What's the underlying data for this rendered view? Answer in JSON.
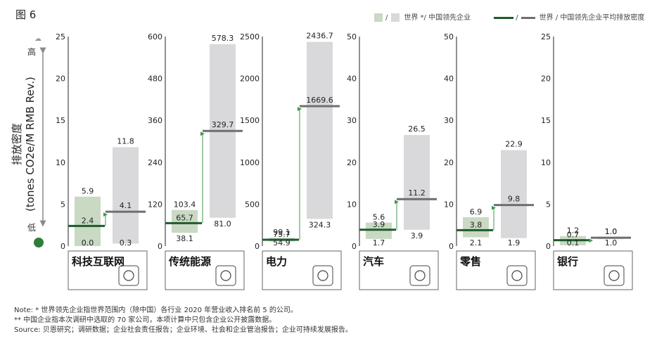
{
  "figure_label": "图 6",
  "legend": {
    "bar_label": "世界 */ 中国领先企业",
    "line_label": "世界 / 中国领先企业平均排放密度"
  },
  "y_axis": {
    "line1": "排放密度",
    "line2": "(tones CO2e/M RMB Rev.)",
    "high": "高",
    "low": "低"
  },
  "chart_data": [
    {
      "type": "bar",
      "sector": "科技互联网",
      "icon": "tech-network-icon",
      "ylim": [
        0,
        25
      ],
      "yticks": [
        0,
        5,
        10,
        15,
        20,
        25
      ],
      "series": [
        {
          "name": "世界",
          "low": 0.3,
          "high": 11.8,
          "avg": 4.1
        },
        {
          "name": "中国领先企业",
          "low": 0.0,
          "high": 5.9,
          "avg": 2.4
        }
      ]
    },
    {
      "type": "bar",
      "sector": "传统能源",
      "icon": "factory-icon",
      "ylim": [
        0,
        600
      ],
      "yticks": [
        0,
        120,
        240,
        360,
        480,
        600
      ],
      "series": [
        {
          "name": "世界",
          "low": 81.0,
          "high": 578.3,
          "avg": 329.7
        },
        {
          "name": "中国领先企业",
          "low": 38.1,
          "high": 103.4,
          "avg": 65.7
        }
      ]
    },
    {
      "type": "bar",
      "sector": "电力",
      "icon": "recycle-power-icon",
      "ylim": [
        0,
        2500
      ],
      "yticks": [
        0,
        500,
        1000,
        1500,
        2000,
        2500
      ],
      "series": [
        {
          "name": "世界",
          "low": 324.3,
          "high": 2436.7,
          "avg": 1669.6
        },
        {
          "name": "中国领先企业",
          "low": 54.9,
          "high": 99.1,
          "avg": 75.7
        }
      ]
    },
    {
      "type": "bar",
      "sector": "汽车",
      "icon": "car-icon",
      "ylim": [
        0,
        50
      ],
      "yticks": [
        0,
        10,
        20,
        30,
        40,
        50
      ],
      "series": [
        {
          "name": "世界",
          "low": 3.9,
          "high": 26.5,
          "avg": 11.2
        },
        {
          "name": "中国领先企业",
          "low": 1.7,
          "high": 5.6,
          "avg": 3.9
        }
      ]
    },
    {
      "type": "bar",
      "sector": "零售",
      "icon": "shopping-cart-icon",
      "ylim": [
        0,
        50
      ],
      "yticks": [
        0,
        10,
        20,
        30,
        40,
        50
      ],
      "series": [
        {
          "name": "世界",
          "low": 1.9,
          "high": 22.9,
          "avg": 9.8
        },
        {
          "name": "中国领先企业",
          "low": 2.1,
          "high": 6.9,
          "avg": 3.8
        }
      ]
    },
    {
      "type": "bar",
      "sector": "银行",
      "icon": "bank-icon",
      "ylim": [
        0,
        25
      ],
      "yticks": [
        0,
        5,
        10,
        15,
        20,
        25
      ],
      "series": [
        {
          "name": "世界",
          "low": 1.0,
          "high": 1.0,
          "avg": 1.0
        },
        {
          "name": "中国领先企业",
          "low": 0.1,
          "high": 1.2,
          "avg": 0.7
        }
      ]
    }
  ],
  "notes": [
    "Note: * 世界领先企业指世界范围内（除中国）各行业 2020 年营业收入排名前 5 的公司。",
    "** 中国企业指本次调研中选取的 70 家公司，本项计算中只包含企业公开披露数据。",
    "Source: 贝恩研究；调研数据；企业社会责任报告；企业环境、社会和企业管治报告；企业可持续发展报告。"
  ],
  "colors": {
    "china_bar": "#c9d9c4",
    "world_bar": "#d9d9db",
    "china_line": "#1e5b2c",
    "world_line": "#6e6e70",
    "arrow": "#3f9a4e"
  }
}
